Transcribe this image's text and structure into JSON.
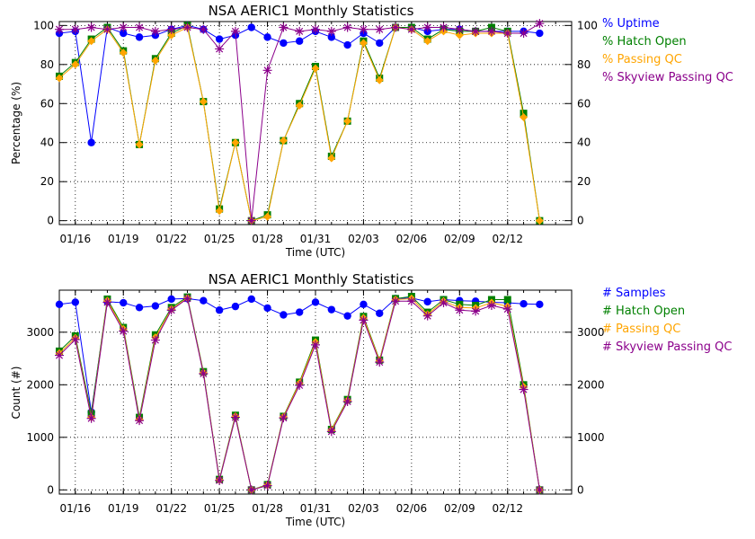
{
  "colors": {
    "blue": "#0000ff",
    "green": "#008000",
    "orange": "#ffa500",
    "purple": "#8b008b"
  },
  "chart_data": [
    {
      "type": "line",
      "title": "NSA AERIC1 Monthly Statistics",
      "xlabel": "Time (UTC)",
      "ylabel": "Percentage (%)",
      "xlim": [
        1,
        33
      ],
      "ylim": [
        -2,
        102
      ],
      "yticks": [
        0,
        20,
        40,
        60,
        80,
        100
      ],
      "xticks": [
        {
          "x": 2,
          "label": "01/16"
        },
        {
          "x": 5,
          "label": "01/19"
        },
        {
          "x": 8,
          "label": "01/22"
        },
        {
          "x": 11,
          "label": "01/25"
        },
        {
          "x": 14,
          "label": "01/28"
        },
        {
          "x": 17,
          "label": "01/31"
        },
        {
          "x": 20,
          "label": "02/03"
        },
        {
          "x": 23,
          "label": "02/06"
        },
        {
          "x": 26,
          "label": "02/09"
        },
        {
          "x": 29,
          "label": "02/12"
        }
      ],
      "x": [
        1,
        2,
        3,
        4,
        5,
        6,
        7,
        8,
        9,
        10,
        11,
        12,
        13,
        14,
        15,
        16,
        17,
        18,
        19,
        20,
        21,
        22,
        23,
        24,
        25,
        26,
        27,
        28,
        29,
        30,
        31
      ],
      "series": [
        {
          "name": "% Uptime",
          "color": "#0000ff",
          "marker": "circle",
          "values": [
            96,
            97,
            40,
            99,
            96,
            94,
            95,
            98,
            100,
            98,
            93,
            95,
            99,
            94,
            91,
            92,
            97,
            94,
            90,
            96,
            91,
            99,
            99,
            97,
            98,
            98,
            97,
            97,
            97,
            97,
            96
          ]
        },
        {
          "name": "% Hatch Open",
          "color": "#008000",
          "marker": "square",
          "values": [
            74,
            81,
            93,
            99,
            87,
            39,
            83,
            96,
            100,
            61,
            6,
            40,
            0,
            3,
            41,
            60,
            79,
            33,
            51,
            92,
            73,
            99,
            99,
            93,
            98,
            97,
            97,
            99,
            97,
            55,
            0
          ]
        },
        {
          "name": "% Passing QC",
          "color": "#ffa500",
          "marker": "diamond",
          "values": [
            73,
            80,
            92,
            98,
            86,
            39,
            82,
            95,
            99,
            61,
            5,
            40,
            0,
            2,
            41,
            59,
            78,
            32,
            51,
            91,
            72,
            99,
            98,
            92,
            97,
            95,
            96,
            96,
            96,
            53,
            0
          ]
        },
        {
          "name": "% Skyview Passing QC",
          "color": "#8b008b",
          "marker": "star",
          "values": [
            98,
            98,
            99,
            98,
            99,
            99,
            97,
            98,
            99,
            98,
            88,
            97,
            0,
            77,
            99,
            97,
            98,
            97,
            99,
            98,
            98,
            99,
            98,
            99,
            99,
            98,
            97,
            97,
            96,
            96,
            101
          ]
        }
      ]
    },
    {
      "type": "line",
      "title": "NSA AERIC1 Monthly Statistics",
      "xlabel": "Time (UTC)",
      "ylabel": "Count (#)",
      "xlim": [
        1,
        33
      ],
      "ylim": [
        -80,
        3800
      ],
      "yticks": [
        0,
        1000,
        2000,
        3000
      ],
      "xticks": [
        {
          "x": 2,
          "label": "01/16"
        },
        {
          "x": 5,
          "label": "01/19"
        },
        {
          "x": 8,
          "label": "01/22"
        },
        {
          "x": 11,
          "label": "01/25"
        },
        {
          "x": 14,
          "label": "01/28"
        },
        {
          "x": 17,
          "label": "01/31"
        },
        {
          "x": 20,
          "label": "02/03"
        },
        {
          "x": 23,
          "label": "02/06"
        },
        {
          "x": 26,
          "label": "02/09"
        },
        {
          "x": 29,
          "label": "02/12"
        }
      ],
      "x": [
        1,
        2,
        3,
        4,
        5,
        6,
        7,
        8,
        9,
        10,
        11,
        12,
        13,
        14,
        15,
        16,
        17,
        18,
        19,
        20,
        21,
        22,
        23,
        24,
        25,
        26,
        27,
        28,
        29,
        30,
        31
      ],
      "series": [
        {
          "name": "# Samples",
          "color": "#0000ff",
          "marker": "circle",
          "values": [
            3530,
            3570,
            1480,
            3580,
            3560,
            3470,
            3500,
            3630,
            3640,
            3600,
            3420,
            3490,
            3630,
            3460,
            3330,
            3380,
            3570,
            3430,
            3310,
            3530,
            3360,
            3640,
            3650,
            3580,
            3620,
            3600,
            3590,
            3570,
            3560,
            3540,
            3530
          ]
        },
        {
          "name": "# Hatch Open",
          "color": "#008000",
          "marker": "square",
          "values": [
            2640,
            2930,
            1450,
            3630,
            3090,
            1380,
            2950,
            3470,
            3670,
            2250,
            200,
            1420,
            0,
            100,
            1400,
            2050,
            2850,
            1150,
            1720,
            3300,
            2470,
            3640,
            3680,
            3380,
            3620,
            3530,
            3510,
            3620,
            3620,
            2000,
            0
          ]
        },
        {
          "name": "# Passing QC",
          "color": "#ffa500",
          "marker": "diamond",
          "values": [
            2600,
            2890,
            1380,
            3600,
            3060,
            1340,
            2900,
            3440,
            3650,
            2230,
            190,
            1400,
            0,
            90,
            1390,
            2030,
            2810,
            1140,
            1700,
            3270,
            2460,
            3620,
            3640,
            3340,
            3590,
            3470,
            3460,
            3560,
            3490,
            1960,
            0
          ]
        },
        {
          "name": "# Skyview Passing QC",
          "color": "#8b008b",
          "marker": "star",
          "values": [
            2560,
            2860,
            1360,
            3570,
            3020,
            1320,
            2850,
            3420,
            3640,
            2210,
            180,
            1380,
            0,
            80,
            1370,
            1990,
            2760,
            1110,
            1680,
            3230,
            2430,
            3590,
            3590,
            3310,
            3560,
            3420,
            3400,
            3510,
            3440,
            1910,
            0
          ]
        }
      ]
    }
  ]
}
